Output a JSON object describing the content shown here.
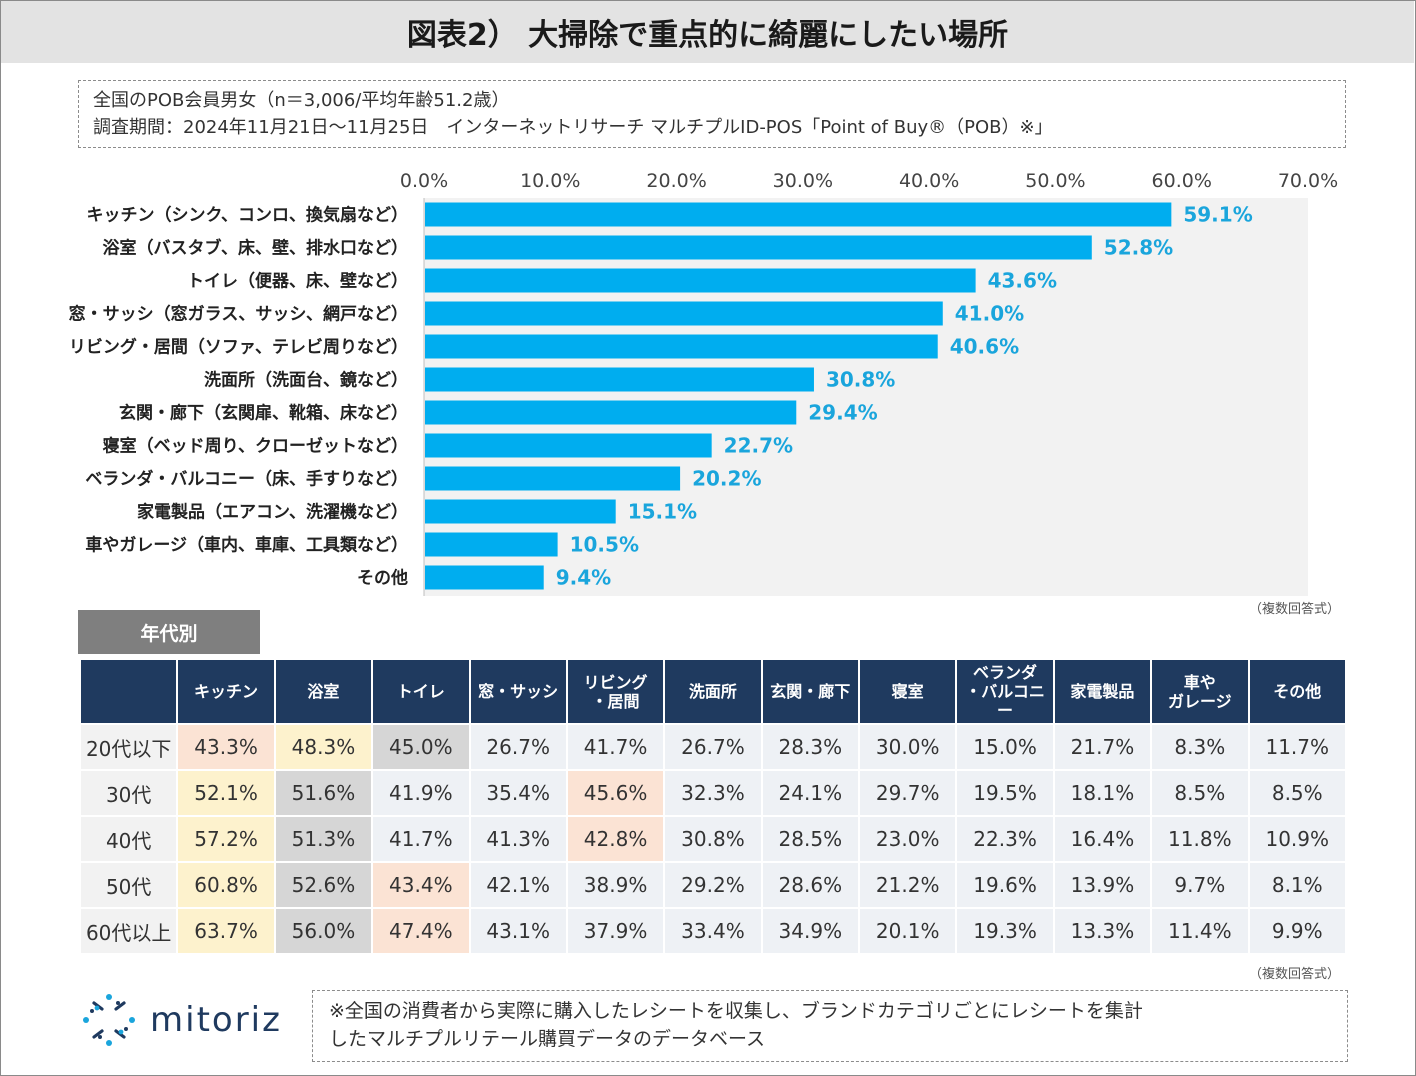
{
  "title": "図表2） 大掃除で重点的に綺麗にしたい場所",
  "survey_info": {
    "line1": "全国のPOB会員男女（n＝3,006/平均年齢51.2歳）",
    "line2": "調査期間：2024年11月21日～11月25日　インターネットリサーチ マルチプルID-POS「Point of Buy®（POB）※」"
  },
  "chart_data": {
    "type": "bar",
    "orientation": "horizontal",
    "categories": [
      "キッチン（シンク、コンロ、換気扇など）",
      "浴室（バスタブ、床、壁、排水口など）",
      "トイレ（便器、床、壁など）",
      "窓・サッシ（窓ガラス、サッシ、網戸など）",
      "リビング・居間（ソファ、テレビ周りなど）",
      "洗面所（洗面台、鏡など）",
      "玄関・廊下（玄関扉、靴箱、床など）",
      "寝室（ベッド周り、クローゼットなど）",
      "ベランダ・バルコニー（床、手すりなど）",
      "家電製品（エアコン、洗濯機など）",
      "車やガレージ（車内、車庫、工具類など）",
      "その他"
    ],
    "values": [
      59.1,
      52.8,
      43.6,
      41.0,
      40.6,
      30.8,
      29.4,
      22.7,
      20.2,
      15.1,
      10.5,
      9.4
    ],
    "value_labels": [
      "59.1%",
      "52.8%",
      "43.6%",
      "41.0%",
      "40.6%",
      "30.8%",
      "29.4%",
      "22.7%",
      "20.2%",
      "15.1%",
      "10.5%",
      "9.4%"
    ],
    "xlim": [
      0,
      70
    ],
    "xticks": [
      "0.0%",
      "10.0%",
      "20.0%",
      "30.0%",
      "40.0%",
      "50.0%",
      "60.0%",
      "70.0%"
    ],
    "bar_color": "#00adef",
    "plot_bg": "#f2f2f2",
    "label_color": "#1aa5dc"
  },
  "multi_answer_note": "（複数回答式）",
  "age_section": {
    "tab_label": "年代別",
    "headers": [
      "",
      "キッチン",
      "浴室",
      "トイレ",
      "窓・サッシ",
      "リビング\n・居間",
      "洗面所",
      "玄関・廊下",
      "寝室",
      "ベランダ\n・バルコニー",
      "家電製品",
      "車や\nガレージ",
      "その他"
    ],
    "rows": [
      {
        "age": "20代以下",
        "values": [
          "43.3%",
          "48.3%",
          "45.0%",
          "26.7%",
          "41.7%",
          "26.7%",
          "28.3%",
          "30.0%",
          "15.0%",
          "21.7%",
          "8.3%",
          "11.7%"
        ],
        "highlight": [
          "peach",
          "yellow",
          "gray",
          "",
          "",
          "",
          "",
          "",
          "",
          "",
          "",
          ""
        ]
      },
      {
        "age": "30代",
        "values": [
          "52.1%",
          "51.6%",
          "41.9%",
          "35.4%",
          "45.6%",
          "32.3%",
          "24.1%",
          "29.7%",
          "19.5%",
          "18.1%",
          "8.5%",
          "8.5%"
        ],
        "highlight": [
          "yellow",
          "gray",
          "",
          "",
          "peach",
          "",
          "",
          "",
          "",
          "",
          "",
          ""
        ]
      },
      {
        "age": "40代",
        "values": [
          "57.2%",
          "51.3%",
          "41.7%",
          "41.3%",
          "42.8%",
          "30.8%",
          "28.5%",
          "23.0%",
          "22.3%",
          "16.4%",
          "11.8%",
          "10.9%"
        ],
        "highlight": [
          "yellow",
          "gray",
          "",
          "",
          "peach",
          "",
          "",
          "",
          "",
          "",
          "",
          ""
        ]
      },
      {
        "age": "50代",
        "values": [
          "60.8%",
          "52.6%",
          "43.4%",
          "42.1%",
          "38.9%",
          "29.2%",
          "28.6%",
          "21.2%",
          "19.6%",
          "13.9%",
          "9.7%",
          "8.1%"
        ],
        "highlight": [
          "yellow",
          "gray",
          "peach",
          "",
          "",
          "",
          "",
          "",
          "",
          "",
          "",
          ""
        ]
      },
      {
        "age": "60代以上",
        "values": [
          "63.7%",
          "56.0%",
          "47.4%",
          "43.1%",
          "37.9%",
          "33.4%",
          "34.9%",
          "20.1%",
          "19.3%",
          "13.3%",
          "11.4%",
          "9.9%"
        ],
        "highlight": [
          "yellow",
          "gray",
          "peach",
          "",
          "",
          "",
          "",
          "",
          "",
          "",
          "",
          ""
        ]
      }
    ],
    "note": "（複数回答式）"
  },
  "logo": {
    "text": "mitoriz",
    "icon": "mitoriz-logo-icon"
  },
  "footnote": {
    "line1": "※全国の消費者から実際に購入したレシートを収集し、ブランドカテゴリごとにレシートを集計",
    "line2": "したマルチプルリテール購買データのデータベース"
  }
}
